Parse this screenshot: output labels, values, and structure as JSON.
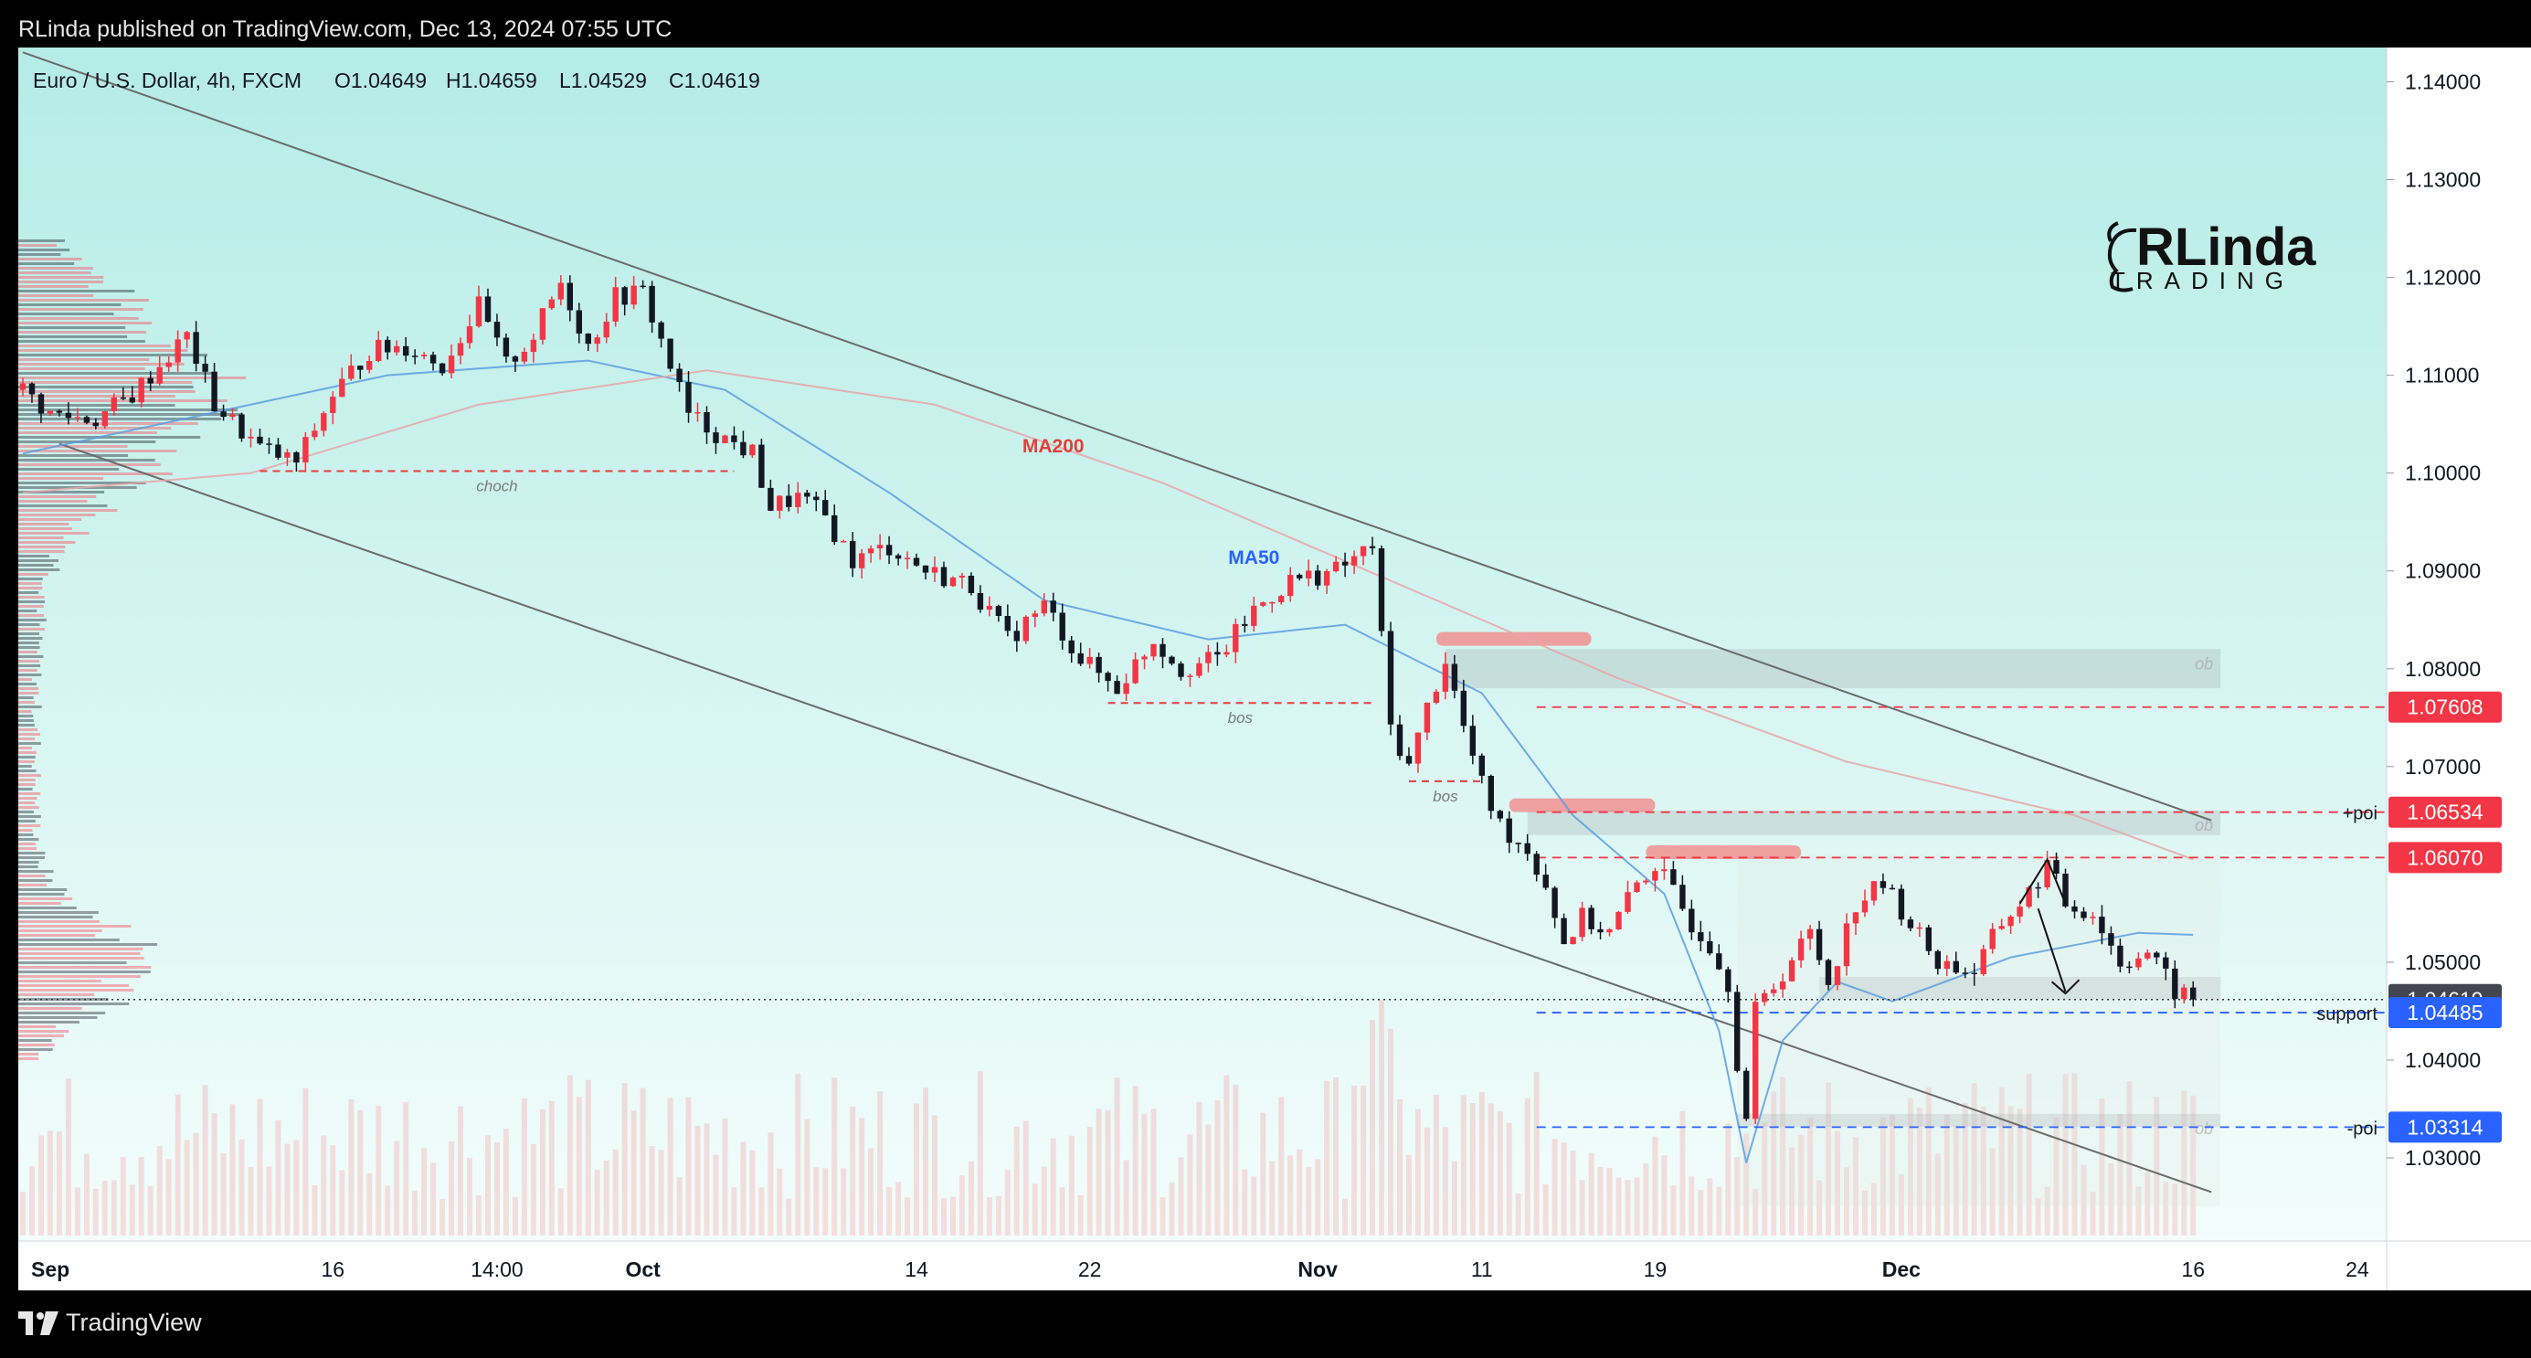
{
  "header": {
    "published": "RLinda published on TradingView.com, Dec 13, 2024 07:55 UTC",
    "symbol": "Euro / U.S. Dollar, 4h, FXCM",
    "ohlc": {
      "o": "O1.04649",
      "h": "H1.04659",
      "l": "L1.04529",
      "c": "C1.04619"
    }
  },
  "footer": {
    "brand": "TradingView"
  },
  "watermark": {
    "line1": "RLinda",
    "line2": "TRADING"
  },
  "colors": {
    "bg_top": "#b5ece6",
    "bg_bottom": "#f3fdfb",
    "bull": "#f23645",
    "bear": "#131722",
    "ma50": "#5b9ee0",
    "ma200": "#e8a6a6",
    "channel": "#6b6b6b",
    "red_label": "#f23645",
    "blue_label": "#2962ff",
    "gray_label": "#434651"
  },
  "chart_data": {
    "type": "candlestick",
    "title": "Euro / U.S. Dollar, 4h, FXCM",
    "ylim": [
      1.0215,
      1.1435
    ],
    "y_ticks": [
      "1.14000",
      "1.13000",
      "1.12000",
      "1.11000",
      "1.10000",
      "1.09000",
      "1.08000",
      "1.07000",
      "1.05000",
      "1.04000",
      "1.03000"
    ],
    "x_ticks": [
      {
        "label": "Sep",
        "i": 0,
        "bold": true
      },
      {
        "label": "16",
        "i": 34,
        "bold": false
      },
      {
        "label": "14:00",
        "i": 52,
        "bold": false
      },
      {
        "label": "Oct",
        "i": 68,
        "bold": true
      },
      {
        "label": "14",
        "i": 98,
        "bold": false
      },
      {
        "label": "22",
        "i": 117,
        "bold": false
      },
      {
        "label": "Nov",
        "i": 142,
        "bold": true
      },
      {
        "label": "11",
        "i": 160,
        "bold": false
      },
      {
        "label": "19",
        "i": 179,
        "bold": false
      },
      {
        "label": "Dec",
        "i": 206,
        "bold": true
      },
      {
        "label": "16",
        "i": 238,
        "bold": false
      },
      {
        "label": "24",
        "i": 256,
        "bold": false
      }
    ],
    "series_anchors": [
      [
        0,
        1.1085
      ],
      [
        3,
        1.106
      ],
      [
        8,
        1.1055
      ],
      [
        12,
        1.108
      ],
      [
        18,
        1.114
      ],
      [
        21,
        1.107
      ],
      [
        26,
        1.1025
      ],
      [
        30,
        1.101
      ],
      [
        34,
        1.108
      ],
      [
        38,
        1.1125
      ],
      [
        42,
        1.113
      ],
      [
        46,
        1.111
      ],
      [
        50,
        1.117
      ],
      [
        53,
        1.111
      ],
      [
        56,
        1.114
      ],
      [
        59,
        1.1195
      ],
      [
        62,
        1.113
      ],
      [
        65,
        1.118
      ],
      [
        68,
        1.1185
      ],
      [
        71,
        1.111
      ],
      [
        73,
        1.106
      ],
      [
        77,
        1.1035
      ],
      [
        80,
        1.102
      ],
      [
        82,
        1.0965
      ],
      [
        85,
        1.0975
      ],
      [
        88,
        1.0955
      ],
      [
        91,
        1.091
      ],
      [
        95,
        1.0925
      ],
      [
        99,
        1.09
      ],
      [
        104,
        1.0885
      ],
      [
        108,
        1.083
      ],
      [
        112,
        1.0865
      ],
      [
        116,
        1.081
      ],
      [
        120,
        1.078
      ],
      [
        124,
        1.083
      ],
      [
        127,
        1.08
      ],
      [
        131,
        1.081
      ],
      [
        135,
        1.086
      ],
      [
        139,
        1.089
      ],
      [
        144,
        1.09
      ],
      [
        148,
        1.0925
      ],
      [
        149,
        1.083
      ],
      [
        150,
        1.074
      ],
      [
        152,
        1.07
      ],
      [
        154,
        1.076
      ],
      [
        156,
        1.081
      ],
      [
        158,
        1.074
      ],
      [
        160,
        1.068
      ],
      [
        162,
        1.064
      ],
      [
        165,
        1.0615
      ],
      [
        167,
        1.058
      ],
      [
        169,
        1.052
      ],
      [
        171,
        1.0545
      ],
      [
        174,
        1.053
      ],
      [
        177,
        1.058
      ],
      [
        179,
        1.06
      ],
      [
        181,
        1.057
      ],
      [
        183,
        1.054
      ],
      [
        185,
        1.052
      ],
      [
        187,
        1.048
      ],
      [
        188,
        1.04
      ],
      [
        189,
        1.034
      ],
      [
        190,
        1.045
      ],
      [
        193,
        1.049
      ],
      [
        196,
        1.053
      ],
      [
        198,
        1.048
      ],
      [
        201,
        1.056
      ],
      [
        204,
        1.058
      ],
      [
        207,
        1.054
      ],
      [
        210,
        1.05
      ],
      [
        214,
        1.049
      ],
      [
        217,
        1.054
      ],
      [
        220,
        1.057
      ],
      [
        222,
        1.06
      ],
      [
        224,
        1.056
      ],
      [
        227,
        1.055
      ],
      [
        230,
        1.05
      ],
      [
        233,
        1.051
      ],
      [
        236,
        1.047
      ],
      [
        238,
        1.0462
      ]
    ],
    "n_candles": 239,
    "last_close": 1.04619,
    "moving_averages": [
      {
        "name": "MA50",
        "anchors": [
          [
            0,
            1.102
          ],
          [
            20,
            1.106
          ],
          [
            40,
            1.11
          ],
          [
            62,
            1.1115
          ],
          [
            77,
            1.1085
          ],
          [
            95,
            1.098
          ],
          [
            112,
            1.087
          ],
          [
            130,
            1.083
          ],
          [
            145,
            1.0845
          ],
          [
            160,
            1.0775
          ],
          [
            170,
            1.065
          ],
          [
            180,
            1.057
          ],
          [
            186,
            1.043
          ],
          [
            189,
            1.0295
          ],
          [
            193,
            1.042
          ],
          [
            199,
            1.048
          ],
          [
            205,
            1.046
          ],
          [
            218,
            1.0505
          ],
          [
            232,
            1.053
          ],
          [
            238,
            1.0528
          ]
        ]
      },
      {
        "name": "MA200",
        "anchors": [
          [
            0,
            1.098
          ],
          [
            25,
            1.1
          ],
          [
            50,
            1.107
          ],
          [
            75,
            1.1105
          ],
          [
            100,
            1.107
          ],
          [
            125,
            1.099
          ],
          [
            150,
            1.089
          ],
          [
            175,
            1.079
          ],
          [
            200,
            1.0705
          ],
          [
            225,
            1.065
          ],
          [
            238,
            1.0605
          ]
        ]
      }
    ],
    "levels": [
      {
        "price": 1.07608,
        "label": "1.07608",
        "color": "red",
        "style": "dashed",
        "text": ""
      },
      {
        "price": 1.06534,
        "label": "1.06534",
        "color": "red",
        "style": "dashed",
        "text": "+poi"
      },
      {
        "price": 1.0607,
        "label": "1.06070",
        "color": "red",
        "style": "dashed",
        "text": ""
      },
      {
        "price": 1.04619,
        "label": "1.04619",
        "color": "gray",
        "style": "dotted",
        "text": ""
      },
      {
        "price": 1.04485,
        "label": "1.04485",
        "color": "blue",
        "style": "dashed",
        "text": "support"
      },
      {
        "price": 1.03314,
        "label": "1.03314",
        "color": "blue",
        "style": "dashed",
        "text": "-poi"
      }
    ],
    "structure_lines": [
      {
        "text": "choch",
        "price": 1.1002,
        "from": 26,
        "to": 78
      },
      {
        "text": "bos",
        "price": 1.0765,
        "from": 119,
        "to": 148
      },
      {
        "text": "bos",
        "price": 1.0685,
        "from": 152,
        "to": 160
      }
    ],
    "zones": [
      {
        "text": "ob",
        "from": 156,
        "to": 241,
        "top": 1.082,
        "bottom": 1.078
      },
      {
        "text": "ob",
        "from": 165,
        "to": 241,
        "top": 1.0655,
        "bottom": 1.063
      },
      {
        "text": "",
        "from": 197,
        "to": 241,
        "top": 1.0485,
        "bottom": 1.0462
      },
      {
        "text": "ob",
        "from": 188,
        "to": 241,
        "top": 1.0345,
        "bottom": 1.0333
      }
    ],
    "supply_marks": [
      {
        "from": 155,
        "to": 172,
        "price": 1.083
      },
      {
        "from": 163,
        "to": 179,
        "price": 1.066
      },
      {
        "from": 178,
        "to": 195,
        "price": 1.0612
      }
    ],
    "channel": {
      "upper": [
        [
          0,
          1.143
        ],
        [
          240,
          1.0645
        ]
      ],
      "lower": [
        [
          4,
          1.103
        ],
        [
          240,
          1.0265
        ]
      ]
    },
    "annotations": [
      "MA200",
      "MA50",
      "choch",
      "bos",
      "bos",
      "ob",
      "ob",
      "ob",
      "+poi",
      "support",
      "-poi"
    ]
  }
}
